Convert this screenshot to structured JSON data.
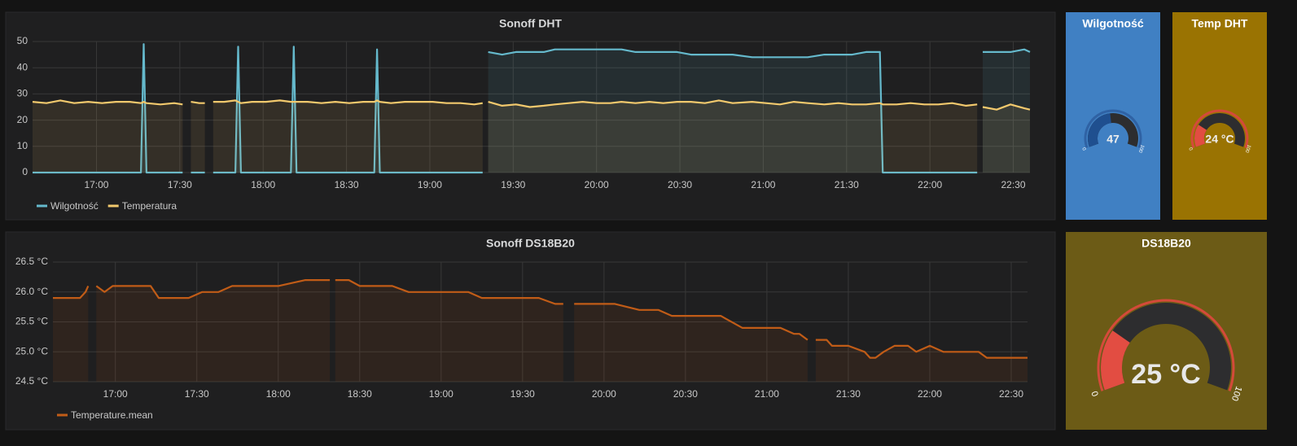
{
  "chart_data": [
    {
      "type": "line",
      "title": "Sonoff DHT",
      "x": [
        997,
        1002,
        1007,
        1012,
        1017,
        1022,
        1027,
        1032,
        1036,
        1037,
        1038,
        1043,
        1048,
        1051,
        1053,
        1054,
        1057,
        1059,
        1061,
        1062,
        1066,
        1070,
        1071,
        1072,
        1076,
        1081,
        1086,
        1090,
        1091,
        1092,
        1096,
        1101,
        1106,
        1111,
        1116,
        1120,
        1121,
        1122,
        1126,
        1131,
        1136,
        1141,
        1146,
        1151,
        1156,
        1159,
        1160,
        1161,
        1166,
        1171,
        1176,
        1181,
        1185,
        1190,
        1195,
        1200,
        1205,
        1209,
        1214,
        1219,
        1224,
        1229,
        1234,
        1239,
        1244,
        1249,
        1256,
        1261,
        1266,
        1271,
        1276,
        1282,
        1287,
        1292,
        1297,
        1302,
        1303,
        1308,
        1313,
        1318,
        1323,
        1328,
        1333,
        1337,
        1338,
        1339,
        1344,
        1349,
        1354,
        1356
      ],
      "xlim": [
        997,
        1356
      ],
      "xticks": [
        {
          "value": 1020,
          "label": "17:00"
        },
        {
          "value": 1050,
          "label": "17:30"
        },
        {
          "value": 1080,
          "label": "18:00"
        },
        {
          "value": 1110,
          "label": "18:30"
        },
        {
          "value": 1140,
          "label": "19:00"
        },
        {
          "value": 1170,
          "label": "19:30"
        },
        {
          "value": 1200,
          "label": "20:00"
        },
        {
          "value": 1230,
          "label": "20:30"
        },
        {
          "value": 1260,
          "label": "21:00"
        },
        {
          "value": 1290,
          "label": "21:30"
        },
        {
          "value": 1320,
          "label": "22:00"
        },
        {
          "value": 1350,
          "label": "22:30"
        }
      ],
      "ylim": [
        0,
        50
      ],
      "yticks": [
        0,
        10,
        20,
        30,
        40,
        50
      ],
      "grid": true,
      "legend": "bottom-left",
      "series": [
        {
          "name": "Wilgotność",
          "color": "#65b9cc",
          "values": [
            0,
            0,
            0,
            0,
            0,
            0,
            0,
            0,
            0,
            49,
            0,
            0,
            0,
            0,
            null,
            0,
            0,
            0,
            null,
            0,
            0,
            0,
            48,
            0,
            0,
            0,
            0,
            0,
            48,
            0,
            0,
            0,
            0,
            0,
            0,
            0,
            47,
            0,
            0,
            0,
            0,
            0,
            0,
            0,
            0,
            0,
            null,
            46,
            45,
            46,
            46,
            46,
            47,
            47,
            47,
            47,
            47,
            47,
            46,
            46,
            46,
            46,
            45,
            45,
            45,
            45,
            44,
            44,
            44,
            44,
            44,
            45,
            45,
            45,
            46,
            46,
            0,
            0,
            0,
            0,
            0,
            0,
            0,
            0,
            null,
            46,
            46,
            46,
            47,
            46
          ]
        },
        {
          "name": "Temperatura",
          "color": "#f2c96d",
          "values": [
            27,
            26.5,
            27.5,
            26.5,
            27,
            26.5,
            27,
            27,
            26.5,
            27,
            26.5,
            26,
            26.5,
            26,
            null,
            27,
            26.5,
            26.5,
            null,
            27,
            27,
            27.5,
            27,
            26.5,
            27,
            27,
            27.5,
            27,
            27,
            27,
            27,
            26.5,
            27,
            26.5,
            27,
            27,
            27.5,
            27,
            26.5,
            27,
            27,
            27,
            26.5,
            26.5,
            26,
            26.5,
            null,
            27,
            25.5,
            26,
            25,
            25.5,
            26,
            26.5,
            27,
            26.5,
            26.5,
            27,
            26.5,
            27,
            26.5,
            27,
            27,
            26.5,
            27.5,
            26.5,
            27,
            26.5,
            26,
            27,
            26.5,
            26,
            26.5,
            26,
            26,
            26.5,
            26,
            26,
            26.5,
            26,
            26,
            26.5,
            25.5,
            26,
            null,
            25,
            24,
            26,
            24.5,
            24
          ]
        }
      ]
    },
    {
      "type": "gauge",
      "title": "Wilgotność",
      "value": 47,
      "ylim": [
        0,
        100
      ],
      "yticks": [
        0,
        100
      ],
      "color": "#1f4f8f",
      "ring_color": "#2f62a4",
      "background": "#4080c3"
    },
    {
      "type": "gauge",
      "title": "Temp DHT",
      "value": 24,
      "value_label": "24 °C",
      "ylim": [
        0,
        100
      ],
      "yticks": [
        0,
        100
      ],
      "color": "#e24d42",
      "ring_color": "#d44a3a",
      "background": "#9a7302"
    },
    {
      "type": "line",
      "title": "Sonoff DS18B20",
      "x": [
        997,
        1002,
        1007,
        1009,
        1010,
        1012,
        1013,
        1016,
        1019,
        1025,
        1033,
        1036,
        1042,
        1047,
        1052,
        1053,
        1058,
        1063,
        1070,
        1080,
        1090,
        1095,
        1099,
        1100,
        1101,
        1106,
        1110,
        1116,
        1122,
        1128,
        1131,
        1138,
        1145,
        1150,
        1155,
        1163,
        1170,
        1176,
        1182,
        1185,
        1187,
        1189,
        1196,
        1204,
        1213,
        1220,
        1225,
        1227,
        1235,
        1243,
        1251,
        1258,
        1265,
        1270,
        1272,
        1275,
        1276,
        1278,
        1282,
        1284,
        1290,
        1296,
        1298,
        1300,
        1303,
        1307,
        1312,
        1315,
        1320,
        1325,
        1330,
        1335,
        1338,
        1341,
        1346,
        1351,
        1356
      ],
      "xlim": [
        997,
        1356
      ],
      "xticks": [
        {
          "value": 1020,
          "label": "17:00"
        },
        {
          "value": 1050,
          "label": "17:30"
        },
        {
          "value": 1080,
          "label": "18:00"
        },
        {
          "value": 1110,
          "label": "18:30"
        },
        {
          "value": 1140,
          "label": "19:00"
        },
        {
          "value": 1170,
          "label": "19:30"
        },
        {
          "value": 1200,
          "label": "20:00"
        },
        {
          "value": 1230,
          "label": "20:30"
        },
        {
          "value": 1260,
          "label": "21:00"
        },
        {
          "value": 1290,
          "label": "21:30"
        },
        {
          "value": 1320,
          "label": "22:00"
        },
        {
          "value": 1350,
          "label": "22:30"
        }
      ],
      "ylim": [
        24.5,
        26.5
      ],
      "yticks": [
        {
          "value": 24.5,
          "label": "24.5 °C"
        },
        {
          "value": 25,
          "label": "25.0 °C"
        },
        {
          "value": 25.5,
          "label": "25.5 °C"
        },
        {
          "value": 26,
          "label": "26.0 °C"
        },
        {
          "value": 26.5,
          "label": "26.5 °C"
        }
      ],
      "grid": true,
      "legend": "bottom-left",
      "series": [
        {
          "name": "Temperature.mean",
          "color": "#c15c17",
          "values": [
            25.9,
            25.9,
            25.9,
            26.0,
            26.1,
            null,
            26.1,
            26.0,
            26.1,
            26.1,
            26.1,
            25.9,
            25.9,
            25.9,
            26.0,
            26.0,
            26.0,
            26.1,
            26.1,
            26.1,
            26.2,
            26.2,
            26.2,
            null,
            26.2,
            26.2,
            26.1,
            26.1,
            26.1,
            26.0,
            26.0,
            26.0,
            26.0,
            26.0,
            25.9,
            25.9,
            25.9,
            25.9,
            25.8,
            25.8,
            null,
            25.8,
            25.8,
            25.8,
            25.7,
            25.7,
            25.6,
            25.6,
            25.6,
            25.6,
            25.4,
            25.4,
            25.4,
            25.3,
            25.3,
            25.2,
            null,
            25.2,
            25.2,
            25.1,
            25.1,
            25.0,
            24.9,
            24.9,
            25.0,
            25.1,
            25.1,
            25.0,
            25.1,
            25.0,
            25.0,
            25.0,
            25.0,
            24.9,
            24.9,
            24.9,
            24.9
          ]
        }
      ]
    },
    {
      "type": "gauge",
      "title": "DS18B20",
      "value": 25,
      "value_label": "25 °C",
      "ylim": [
        0,
        100
      ],
      "yticks": [
        0,
        100
      ],
      "color": "#e24d42",
      "ring_color": "#d44a3a",
      "background": "#6c5b16"
    }
  ]
}
